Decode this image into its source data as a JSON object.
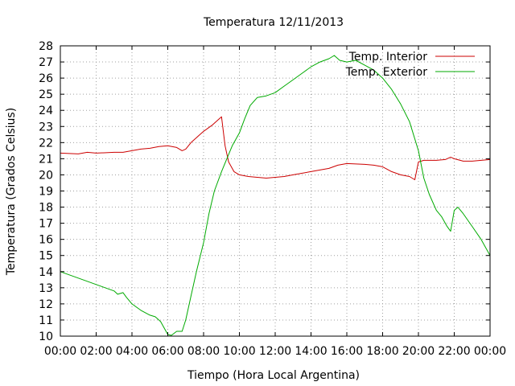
{
  "chart_data": {
    "type": "line",
    "title": "Temperatura 12/11/2013",
    "xlabel": "Tiempo (Hora Local Argentina)",
    "ylabel": "Temperatura (Grados Celsius)",
    "xlim": [
      0,
      24
    ],
    "ylim": [
      10,
      28
    ],
    "grid": true,
    "legend_position": "top-right",
    "x_tick_labels": [
      "00:00",
      "02:00",
      "04:00",
      "06:00",
      "08:00",
      "10:00",
      "12:00",
      "14:00",
      "16:00",
      "18:00",
      "20:00",
      "22:00",
      "00:00"
    ],
    "y_tick_labels": [
      "10",
      "11",
      "12",
      "13",
      "14",
      "15",
      "16",
      "17",
      "18",
      "19",
      "20",
      "21",
      "22",
      "23",
      "24",
      "25",
      "26",
      "27",
      "28"
    ],
    "series": [
      {
        "name": "Temp. Interior",
        "color": "#cc0000",
        "points": [
          [
            0,
            21.35
          ],
          [
            1,
            21.3
          ],
          [
            1.5,
            21.4
          ],
          [
            2,
            21.35
          ],
          [
            3,
            21.4
          ],
          [
            3.5,
            21.4
          ],
          [
            4,
            21.5
          ],
          [
            4.5,
            21.6
          ],
          [
            5,
            21.65
          ],
          [
            5.5,
            21.75
          ],
          [
            6,
            21.8
          ],
          [
            6.5,
            21.7
          ],
          [
            6.8,
            21.5
          ],
          [
            7,
            21.6
          ],
          [
            7.3,
            22.0
          ],
          [
            7.7,
            22.4
          ],
          [
            8,
            22.7
          ],
          [
            8.5,
            23.1
          ],
          [
            8.9,
            23.5
          ],
          [
            9.0,
            23.6
          ],
          [
            9.2,
            21.8
          ],
          [
            9.4,
            20.8
          ],
          [
            9.7,
            20.2
          ],
          [
            10,
            20.0
          ],
          [
            10.5,
            19.9
          ],
          [
            11,
            19.85
          ],
          [
            11.5,
            19.8
          ],
          [
            12,
            19.85
          ],
          [
            12.5,
            19.9
          ],
          [
            13,
            20.0
          ],
          [
            14,
            20.2
          ],
          [
            14.5,
            20.3
          ],
          [
            15,
            20.4
          ],
          [
            15.5,
            20.6
          ],
          [
            16,
            20.7
          ],
          [
            17,
            20.65
          ],
          [
            17.5,
            20.6
          ],
          [
            18,
            20.5
          ],
          [
            18.5,
            20.2
          ],
          [
            19,
            20.0
          ],
          [
            19.5,
            19.9
          ],
          [
            19.8,
            19.7
          ],
          [
            20,
            20.8
          ],
          [
            20.3,
            20.9
          ],
          [
            21,
            20.9
          ],
          [
            21.5,
            20.95
          ],
          [
            21.8,
            21.1
          ],
          [
            22,
            21.0
          ],
          [
            22.5,
            20.85
          ],
          [
            23,
            20.85
          ],
          [
            23.5,
            20.9
          ],
          [
            24,
            20.95
          ]
        ]
      },
      {
        "name": "Temp. Exterior",
        "color": "#00aa00",
        "points": [
          [
            0,
            14.0
          ],
          [
            0.5,
            13.8
          ],
          [
            1,
            13.6
          ],
          [
            1.5,
            13.4
          ],
          [
            2,
            13.2
          ],
          [
            2.5,
            13.0
          ],
          [
            3,
            12.8
          ],
          [
            3.2,
            12.6
          ],
          [
            3.5,
            12.7
          ],
          [
            3.7,
            12.4
          ],
          [
            4,
            12.0
          ],
          [
            4.5,
            11.6
          ],
          [
            5,
            11.3
          ],
          [
            5.3,
            11.2
          ],
          [
            5.6,
            10.9
          ],
          [
            5.8,
            10.5
          ],
          [
            6,
            10.1
          ],
          [
            6.2,
            10.05
          ],
          [
            6.5,
            10.3
          ],
          [
            6.8,
            10.3
          ],
          [
            7,
            11.0
          ],
          [
            7.3,
            12.5
          ],
          [
            7.6,
            14.0
          ],
          [
            8,
            15.8
          ],
          [
            8.3,
            17.6
          ],
          [
            8.6,
            19.0
          ],
          [
            9,
            20.2
          ],
          [
            9.3,
            21.0
          ],
          [
            9.6,
            21.8
          ],
          [
            10,
            22.6
          ],
          [
            10.3,
            23.5
          ],
          [
            10.6,
            24.3
          ],
          [
            11,
            24.8
          ],
          [
            11.5,
            24.9
          ],
          [
            12,
            25.1
          ],
          [
            12.5,
            25.5
          ],
          [
            13,
            25.9
          ],
          [
            13.5,
            26.3
          ],
          [
            14,
            26.7
          ],
          [
            14.5,
            27.0
          ],
          [
            15,
            27.2
          ],
          [
            15.3,
            27.4
          ],
          [
            15.6,
            27.1
          ],
          [
            16,
            27.0
          ],
          [
            16.5,
            27.1
          ],
          [
            17,
            26.8
          ],
          [
            17.5,
            26.5
          ],
          [
            18,
            26.0
          ],
          [
            18.5,
            25.3
          ],
          [
            19,
            24.4
          ],
          [
            19.5,
            23.3
          ],
          [
            20,
            21.5
          ],
          [
            20.3,
            19.8
          ],
          [
            20.6,
            18.8
          ],
          [
            21,
            17.8
          ],
          [
            21.3,
            17.4
          ],
          [
            21.6,
            16.8
          ],
          [
            21.8,
            16.5
          ],
          [
            22,
            17.8
          ],
          [
            22.2,
            18.0
          ],
          [
            22.5,
            17.6
          ],
          [
            23,
            16.8
          ],
          [
            23.5,
            16.0
          ],
          [
            24,
            15.0
          ]
        ]
      }
    ]
  }
}
